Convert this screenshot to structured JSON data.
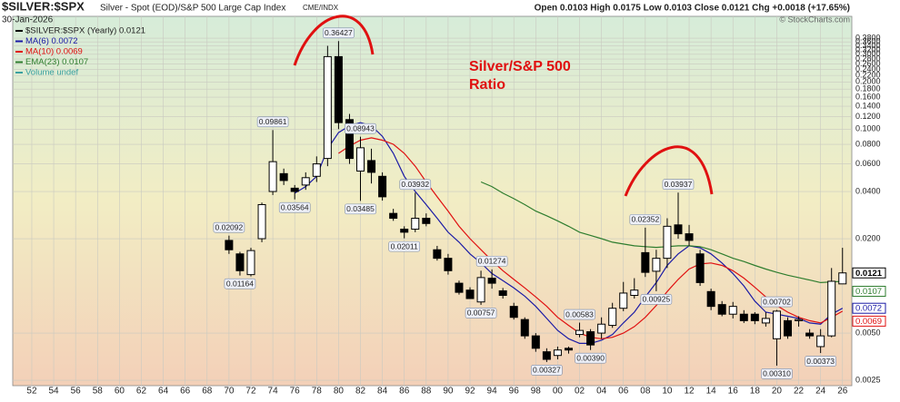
{
  "chart_data": {
    "type": "candlestick",
    "symbol": "$SILVER:$SPX",
    "description": "Silver - Spot (EOD)/S&P 500 Large Cap Index",
    "exchange": "CME/INDX",
    "date": "30-Jan-2026",
    "quote": "Open 0.0103 High 0.0175 Low 0.0103 Close 0.0121 Chg +0.0018 (+17.65%)",
    "watermark": "© StockCharts.com",
    "annotation": [
      "Silver/S&P 500",
      "Ratio"
    ],
    "log_scale": true,
    "grid": true,
    "xlim": [
      1950.26,
      2026.85
    ],
    "ylim": [
      0.00231,
      0.524
    ],
    "xticks": [
      {
        "value": 1952,
        "label": "52"
      },
      {
        "value": 1954,
        "label": "54"
      },
      {
        "value": 1956,
        "label": "56"
      },
      {
        "value": 1958,
        "label": "58"
      },
      {
        "value": 1960,
        "label": "60"
      },
      {
        "value": 1962,
        "label": "62"
      },
      {
        "value": 1964,
        "label": "64"
      },
      {
        "value": 1966,
        "label": "66"
      },
      {
        "value": 1968,
        "label": "68"
      },
      {
        "value": 1970,
        "label": "70"
      },
      {
        "value": 1972,
        "label": "72"
      },
      {
        "value": 1974,
        "label": "74"
      },
      {
        "value": 1976,
        "label": "76"
      },
      {
        "value": 1978,
        "label": "78"
      },
      {
        "value": 1980,
        "label": "80"
      },
      {
        "value": 1982,
        "label": "82"
      },
      {
        "value": 1984,
        "label": "84"
      },
      {
        "value": 1986,
        "label": "86"
      },
      {
        "value": 1988,
        "label": "88"
      },
      {
        "value": 1990,
        "label": "90"
      },
      {
        "value": 1992,
        "label": "92"
      },
      {
        "value": 1994,
        "label": "94"
      },
      {
        "value": 1996,
        "label": "96"
      },
      {
        "value": 1998,
        "label": "98"
      },
      {
        "value": 2000,
        "label": "00"
      },
      {
        "value": 2002,
        "label": "02"
      },
      {
        "value": 2004,
        "label": "04"
      },
      {
        "value": 2006,
        "label": "06"
      },
      {
        "value": 2008,
        "label": "08"
      },
      {
        "value": 2010,
        "label": "10"
      },
      {
        "value": 2012,
        "label": "12"
      },
      {
        "value": 2014,
        "label": "14"
      },
      {
        "value": 2016,
        "label": "16"
      },
      {
        "value": 2018,
        "label": "18"
      },
      {
        "value": 2020,
        "label": "20"
      },
      {
        "value": 2022,
        "label": "22"
      },
      {
        "value": 2024,
        "label": "24"
      },
      {
        "value": 2026,
        "label": "26"
      }
    ],
    "yticks": [
      0.0025,
      {
        "value": 0.005,
        "label": "0.0050"
      },
      {
        "value": 0.04,
        "label": "0.0400"
      },
      {
        "value": 0.02,
        "label": "0.0200"
      },
      {
        "value": 0.06,
        "label": "0.0600"
      },
      {
        "value": 0.08,
        "label": "0.0800"
      },
      {
        "value": 0.1,
        "label": "0.1000"
      },
      {
        "value": 0.12,
        "label": "0.1200"
      },
      {
        "value": 0.14,
        "label": "0.1400"
      },
      {
        "value": 0.16,
        "label": "0.1600"
      },
      {
        "value": 0.18,
        "label": "0.1800"
      },
      {
        "value": 0.2,
        "label": "0.2000"
      },
      {
        "value": 0.22,
        "label": "0.2200"
      },
      {
        "value": 0.24,
        "label": "0.2400"
      },
      {
        "value": 0.26,
        "label": "0.2600"
      },
      {
        "value": 0.28,
        "label": "0.2800"
      },
      {
        "value": 0.3,
        "label": "0.3000"
      },
      {
        "value": 0.32,
        "label": "0.3200"
      },
      {
        "value": 0.34,
        "label": "0.3400"
      },
      {
        "value": 0.36,
        "label": "0.3600"
      },
      {
        "value": 0.38,
        "label": "0.3800"
      }
    ],
    "x": [
      1970,
      1971,
      1972,
      1973,
      1974,
      1975,
      1976,
      1977,
      1978,
      1979,
      1980,
      1981,
      1982,
      1983,
      1984,
      1985,
      1986,
      1987,
      1988,
      1989,
      1990,
      1991,
      1992,
      1993,
      1994,
      1995,
      1996,
      1997,
      1998,
      1999,
      2000,
      2001,
      2002,
      2003,
      2004,
      2005,
      2006,
      2007,
      2008,
      2009,
      2010,
      2011,
      2012,
      2013,
      2014,
      2015,
      2016,
      2017,
      2018,
      2019,
      2020,
      2021,
      2022,
      2023,
      2024,
      2025,
      2026
    ],
    "candles": {
      "name": "$SILVER:$SPX (Yearly) 0.0121",
      "tag": "0.0121",
      "color": "#000000",
      "open": [
        0.0195,
        0.016,
        0.0118,
        0.02,
        0.04,
        0.052,
        0.042,
        0.044,
        0.05,
        0.065,
        0.29,
        0.115,
        0.054,
        0.063,
        0.05,
        0.029,
        0.023,
        0.023,
        0.027,
        0.017,
        0.015,
        0.0104,
        0.0094,
        0.0079,
        0.0112,
        0.0093,
        0.0074,
        0.0061,
        0.0048,
        0.0038,
        0.0036,
        0.004,
        0.0049,
        0.0051,
        0.005,
        0.0056,
        0.0072,
        0.0087,
        0.0163,
        0.0124,
        0.015,
        0.0245,
        0.0215,
        0.016,
        0.0092,
        0.0076,
        0.0066,
        0.0066,
        0.0066,
        0.0058,
        0.0046,
        0.006,
        0.006,
        0.005,
        0.0041,
        0.0048,
        0.0103
      ],
      "high": [
        0.02092,
        0.0165,
        0.0175,
        0.034,
        0.09861,
        0.056,
        0.044,
        0.053,
        0.067,
        0.34,
        0.36427,
        0.125,
        0.08943,
        0.075,
        0.053,
        0.031,
        0.024,
        0.03932,
        0.029,
        0.018,
        0.016,
        0.0108,
        0.0098,
        0.0125,
        0.01274,
        0.0097,
        0.0078,
        0.0063,
        0.005,
        0.004,
        0.0041,
        0.0041,
        0.00583,
        0.0053,
        0.0063,
        0.0078,
        0.0106,
        0.0112,
        0.02352,
        0.017,
        0.027,
        0.03937,
        0.0245,
        0.017,
        0.0096,
        0.008,
        0.0079,
        0.007,
        0.0068,
        0.0068,
        0.00702,
        0.0063,
        0.0064,
        0.0053,
        0.0053,
        0.013,
        0.0175
      ],
      "low": [
        0.016,
        0.01164,
        0.0115,
        0.019,
        0.038,
        0.044,
        0.03564,
        0.041,
        0.046,
        0.058,
        0.1,
        0.06,
        0.03485,
        0.045,
        0.035,
        0.026,
        0.02011,
        0.022,
        0.024,
        0.0145,
        0.0118,
        0.0088,
        0.0083,
        0.00757,
        0.0096,
        0.0083,
        0.0061,
        0.0046,
        0.0038,
        0.00327,
        0.0034,
        0.0037,
        0.0047,
        0.0039,
        0.0046,
        0.0054,
        0.0069,
        0.0083,
        0.0114,
        0.00925,
        0.013,
        0.02,
        0.018,
        0.01,
        0.007,
        0.0064,
        0.0062,
        0.0058,
        0.0057,
        0.0055,
        0.0031,
        0.0046,
        0.0055,
        0.0046,
        0.00373,
        0.0047,
        0.0103
      ],
      "close": [
        0.017,
        0.0125,
        0.0168,
        0.033,
        0.062,
        0.047,
        0.04,
        0.049,
        0.06,
        0.29,
        0.11,
        0.065,
        0.076,
        0.053,
        0.037,
        0.027,
        0.022,
        0.027,
        0.025,
        0.015,
        0.0125,
        0.0091,
        0.0083,
        0.0113,
        0.0104,
        0.0087,
        0.0063,
        0.0048,
        0.004,
        0.0034,
        0.0039,
        0.0039,
        0.0052,
        0.0042,
        0.0057,
        0.0072,
        0.009,
        0.0094,
        0.0122,
        0.015,
        0.024,
        0.0215,
        0.0195,
        0.0105,
        0.0074,
        0.0066,
        0.0074,
        0.006,
        0.006,
        0.0062,
        0.0069,
        0.0048,
        0.0061,
        0.0048,
        0.0048,
        0.0107,
        0.0121
      ]
    },
    "callouts": [
      {
        "x": 1970,
        "at": "high",
        "label": "0.02092"
      },
      {
        "x": 1971,
        "at": "low",
        "label": "0.01164"
      },
      {
        "x": 1974,
        "at": "high",
        "label": "0.09861"
      },
      {
        "x": 1976,
        "at": "low",
        "label": "0.03564"
      },
      {
        "x": 1980,
        "at": "high",
        "label": "0.36427"
      },
      {
        "x": 1982,
        "at": "high",
        "label": "0.08943"
      },
      {
        "x": 1982,
        "at": "low",
        "label": "0.03485"
      },
      {
        "x": 1986,
        "at": "low",
        "label": "0.02011"
      },
      {
        "x": 1987,
        "at": "high",
        "label": "0.03932"
      },
      {
        "x": 1993,
        "at": "low",
        "label": "0.00757"
      },
      {
        "x": 1994,
        "at": "high",
        "label": "0.01274"
      },
      {
        "x": 1999,
        "at": "low",
        "label": "0.00327"
      },
      {
        "x": 2002,
        "at": "high",
        "label": "0.00583"
      },
      {
        "x": 2003,
        "at": "low",
        "label": "0.00390"
      },
      {
        "x": 2008,
        "at": "high",
        "label": "0.02352"
      },
      {
        "x": 2009,
        "at": "low",
        "label": "0.00925"
      },
      {
        "x": 2011,
        "at": "high",
        "label": "0.03937"
      },
      {
        "x": 2020,
        "at": "high",
        "label": "0.00702"
      },
      {
        "x": 2020,
        "at": "low",
        "label": "0.00310"
      },
      {
        "x": 2024,
        "at": "low",
        "label": "0.00373"
      }
    ],
    "series": [
      {
        "name": "MA(6) 0.0072",
        "tag": "0.0072",
        "color": "#1a1aa6",
        "values": [
          null,
          null,
          null,
          null,
          null,
          null,
          0.039,
          0.043,
          0.05,
          0.075,
          0.095,
          0.105,
          0.11,
          0.105,
          0.09,
          0.07,
          0.05,
          0.04,
          0.033,
          0.027,
          0.022,
          0.019,
          0.016,
          0.014,
          0.012,
          0.0108,
          0.0097,
          0.0086,
          0.0074,
          0.0062,
          0.0052,
          0.0046,
          0.0043,
          0.0043,
          0.0045,
          0.0049,
          0.0058,
          0.0068,
          0.0085,
          0.0105,
          0.0135,
          0.016,
          0.018,
          0.0175,
          0.016,
          0.014,
          0.012,
          0.01,
          0.008,
          0.0068,
          0.0066,
          0.0064,
          0.0062,
          0.0058,
          0.0057,
          0.0066,
          0.0072
        ]
      },
      {
        "name": "MA(10) 0.0069",
        "tag": "0.0069",
        "color": "#e01010",
        "values": [
          null,
          null,
          null,
          null,
          null,
          null,
          null,
          null,
          null,
          null,
          0.07,
          0.078,
          0.085,
          0.088,
          0.085,
          0.08,
          0.07,
          0.058,
          0.046,
          0.037,
          0.03,
          0.024,
          0.02,
          0.017,
          0.0145,
          0.0125,
          0.011,
          0.0097,
          0.0085,
          0.0074,
          0.0063,
          0.0056,
          0.005,
          0.0047,
          0.0046,
          0.0047,
          0.005,
          0.0055,
          0.0063,
          0.0075,
          0.0092,
          0.011,
          0.0128,
          0.0138,
          0.014,
          0.0135,
          0.0125,
          0.0112,
          0.0098,
          0.0085,
          0.0075,
          0.0068,
          0.0063,
          0.006,
          0.0058,
          0.0063,
          0.0069
        ]
      },
      {
        "name": "EMA(23) 0.0107",
        "tag": "0.0107",
        "color": "#2e7d2e",
        "values": [
          null,
          null,
          null,
          null,
          null,
          null,
          null,
          null,
          null,
          null,
          null,
          null,
          null,
          null,
          null,
          null,
          null,
          null,
          null,
          null,
          null,
          null,
          null,
          0.046,
          0.043,
          0.039,
          0.036,
          0.033,
          0.03,
          0.028,
          0.026,
          0.024,
          0.022,
          0.021,
          0.02,
          0.019,
          0.0185,
          0.018,
          0.0178,
          0.0176,
          0.0178,
          0.018,
          0.018,
          0.0178,
          0.017,
          0.016,
          0.015,
          0.0143,
          0.0135,
          0.0128,
          0.0122,
          0.0117,
          0.0113,
          0.0109,
          0.0105,
          0.0106,
          0.0107
        ]
      }
    ],
    "volume_legend": "Volume undef"
  }
}
